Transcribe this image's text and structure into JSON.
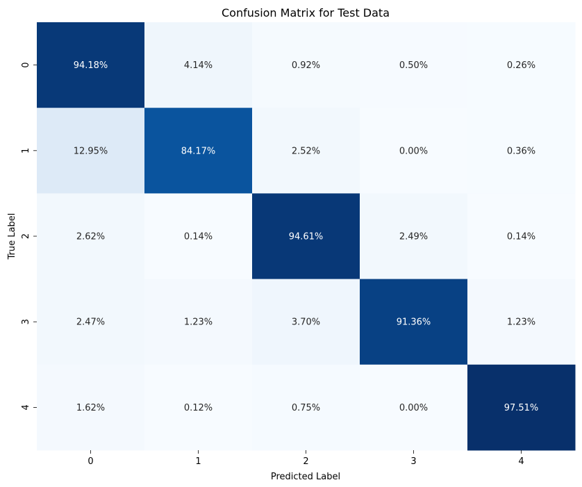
{
  "chart_data": {
    "type": "heatmap",
    "title": "Confusion Matrix for Test Data",
    "xlabel": "Predicted Label",
    "ylabel": "True Label",
    "x_categories": [
      "0",
      "1",
      "2",
      "3",
      "4"
    ],
    "y_categories": [
      "0",
      "1",
      "2",
      "3",
      "4"
    ],
    "values": [
      [
        94.18,
        4.14,
        0.92,
        0.5,
        0.26
      ],
      [
        12.95,
        84.17,
        2.52,
        0.0,
        0.36
      ],
      [
        2.62,
        0.14,
        94.61,
        2.49,
        0.14
      ],
      [
        2.47,
        1.23,
        3.7,
        91.36,
        1.23
      ],
      [
        1.62,
        0.12,
        0.75,
        0.0,
        97.51
      ]
    ],
    "value_format": "percent_2dp",
    "colormap": "Blues",
    "color_range": [
      0,
      97.51
    ],
    "colorbar": false
  }
}
